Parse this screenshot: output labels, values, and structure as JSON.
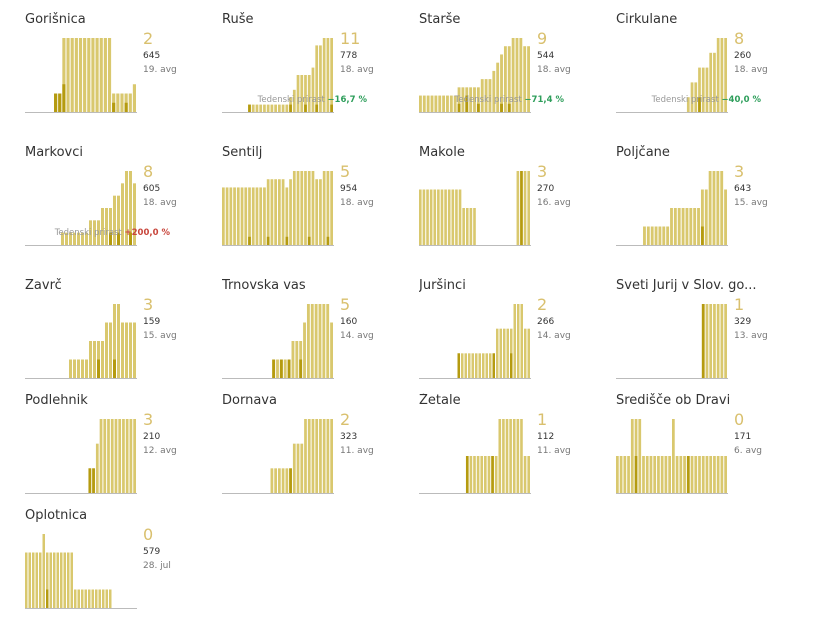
{
  "colors": {
    "light": "#d9c86e",
    "dark": "#b59b10",
    "baseline": "#bbbbbb",
    "number": "#d9c06e",
    "decrease": "#2e9e5b",
    "increase": "#c8453b"
  },
  "weekly_label": "Tedenski prirast",
  "chart_data": [
    {
      "type": "bar",
      "name": "Gorišnica",
      "big": "2",
      "population": "645",
      "date": "19. avg",
      "weekly": null,
      "values": [
        0,
        0,
        0,
        0,
        0,
        0,
        0,
        2,
        2,
        8,
        8,
        8,
        8,
        8,
        8,
        8,
        8,
        8,
        8,
        8,
        8,
        2,
        2,
        2,
        2,
        2,
        3
      ],
      "dark": [
        0,
        0,
        0,
        0,
        0,
        0,
        0,
        2,
        2,
        3,
        0,
        0,
        0,
        0,
        0,
        0,
        0,
        0,
        0,
        0,
        0,
        1,
        0,
        0,
        1,
        0,
        0
      ]
    },
    {
      "type": "bar",
      "name": "Ruše",
      "big": "11",
      "population": "778",
      "date": "18. avg",
      "weekly": {
        "text": "−16,7 %",
        "sign": "neg"
      },
      "values": [
        0,
        0,
        0,
        0,
        0,
        0,
        0,
        1,
        1,
        1,
        1,
        1,
        1,
        1,
        1,
        1,
        1,
        1,
        2,
        3,
        5,
        5,
        5,
        5,
        6,
        9,
        9,
        10,
        10,
        10
      ],
      "dark": [
        0,
        0,
        0,
        0,
        0,
        0,
        0,
        1,
        0,
        0,
        0,
        0,
        0,
        0,
        0,
        0,
        0,
        0,
        1,
        0,
        0,
        0,
        1,
        0,
        0,
        1,
        0,
        0,
        0,
        1
      ]
    },
    {
      "type": "bar",
      "name": "Starše",
      "big": "9",
      "population": "544",
      "date": "18. avg",
      "weekly": {
        "text": "−71,4 %",
        "sign": "neg"
      },
      "values": [
        2,
        2,
        2,
        2,
        2,
        2,
        2,
        2,
        2,
        2,
        3,
        3,
        3,
        3,
        3,
        3,
        4,
        4,
        4,
        5,
        6,
        7,
        8,
        8,
        9,
        9,
        9,
        8,
        8
      ],
      "dark": [
        0,
        0,
        0,
        0,
        0,
        0,
        0,
        0,
        0,
        0,
        1,
        0,
        2,
        0,
        0,
        1,
        0,
        0,
        0,
        0,
        0,
        1,
        0,
        1,
        0,
        0,
        0,
        0,
        0
      ]
    },
    {
      "type": "bar",
      "name": "Cirkulane",
      "big": "8",
      "population": "260",
      "date": "18. avg",
      "weekly": {
        "text": "−40,0 %",
        "sign": "neg"
      },
      "values": [
        0,
        0,
        0,
        0,
        0,
        0,
        0,
        0,
        0,
        0,
        0,
        0,
        0,
        0,
        0,
        0,
        0,
        0,
        0,
        1,
        2,
        2,
        3,
        3,
        3,
        4,
        4,
        5,
        5,
        5
      ],
      "dark": [
        0,
        0,
        0,
        0,
        0,
        0,
        0,
        0,
        0,
        0,
        0,
        0,
        0,
        0,
        0,
        0,
        0,
        0,
        0,
        0,
        0,
        0,
        1,
        0,
        0,
        0,
        0,
        0,
        0,
        0
      ]
    },
    {
      "type": "bar",
      "name": "Markovci",
      "big": "8",
      "population": "605",
      "date": "18. avg",
      "weekly": {
        "text": "+200,0 %",
        "sign": "pos"
      },
      "values": [
        0,
        0,
        0,
        0,
        0,
        0,
        0,
        0,
        0,
        1,
        1,
        1,
        1,
        1,
        1,
        1,
        2,
        2,
        2,
        3,
        3,
        3,
        4,
        4,
        5,
        6,
        6,
        5
      ],
      "dark": [
        0,
        0,
        0,
        0,
        0,
        0,
        0,
        0,
        0,
        0,
        0,
        0,
        0,
        0,
        0,
        0,
        0,
        0,
        0,
        0,
        0,
        1,
        0,
        1,
        0,
        0,
        1,
        0
      ]
    },
    {
      "type": "bar",
      "name": "Šentilj",
      "big": "5",
      "population": "954",
      "date": "18. avg",
      "weekly": null,
      "values": [
        7,
        7,
        7,
        7,
        7,
        7,
        7,
        7,
        7,
        7,
        7,
        7,
        8,
        8,
        8,
        8,
        8,
        7,
        8,
        9,
        9,
        9,
        9,
        9,
        9,
        8,
        8,
        9,
        9,
        9
      ],
      "dark": [
        0,
        0,
        0,
        0,
        0,
        0,
        0,
        1,
        0,
        0,
        0,
        0,
        1,
        0,
        0,
        0,
        0,
        1,
        0,
        0,
        0,
        0,
        0,
        1,
        0,
        0,
        0,
        0,
        1,
        0
      ]
    },
    {
      "type": "bar",
      "name": "Makole",
      "big": "3",
      "population": "270",
      "date": "16. avg",
      "weekly": null,
      "values": [
        3,
        3,
        3,
        3,
        3,
        3,
        3,
        3,
        3,
        3,
        3,
        3,
        2,
        2,
        2,
        2,
        0,
        0,
        0,
        0,
        0,
        0,
        0,
        0,
        0,
        0,
        0,
        4,
        4,
        4,
        4
      ],
      "dark": [
        0,
        0,
        0,
        0,
        0,
        0,
        0,
        0,
        0,
        0,
        0,
        0,
        0,
        0,
        0,
        0,
        0,
        0,
        0,
        0,
        0,
        0,
        0,
        0,
        0,
        0,
        0,
        0,
        4,
        0,
        0
      ]
    },
    {
      "type": "bar",
      "name": "Poljčane",
      "big": "3",
      "population": "643",
      "date": "15. avg",
      "weekly": null,
      "values": [
        0,
        0,
        0,
        0,
        0,
        0,
        0,
        1,
        1,
        1,
        1,
        1,
        1,
        1,
        2,
        2,
        2,
        2,
        2,
        2,
        2,
        2,
        3,
        3,
        4,
        4,
        4,
        4,
        3
      ],
      "dark": [
        0,
        0,
        0,
        0,
        0,
        0,
        0,
        0,
        0,
        0,
        0,
        0,
        0,
        0,
        0,
        0,
        0,
        0,
        0,
        0,
        0,
        0,
        1,
        0,
        0,
        0,
        0,
        0,
        0
      ]
    },
    {
      "type": "bar",
      "name": "Zavrč",
      "big": "3",
      "population": "159",
      "date": "15. avg",
      "weekly": null,
      "values": [
        0,
        0,
        0,
        0,
        0,
        0,
        0,
        0,
        0,
        0,
        0,
        1,
        1,
        1,
        1,
        1,
        2,
        2,
        2,
        2,
        3,
        3,
        4,
        4,
        3,
        3,
        3,
        3
      ],
      "dark": [
        0,
        0,
        0,
        0,
        0,
        0,
        0,
        0,
        0,
        0,
        0,
        0,
        0,
        0,
        0,
        0,
        0,
        0,
        1,
        0,
        0,
        0,
        1,
        0,
        0,
        0,
        0,
        0
      ]
    },
    {
      "type": "bar",
      "name": "Trnovska vas",
      "big": "5",
      "population": "160",
      "date": "14. avg",
      "weekly": null,
      "values": [
        0,
        0,
        0,
        0,
        0,
        0,
        0,
        0,
        0,
        0,
        0,
        0,
        0,
        1,
        1,
        1,
        1,
        1,
        2,
        2,
        2,
        3,
        4,
        4,
        4,
        4,
        4,
        4,
        3
      ],
      "dark": [
        0,
        0,
        0,
        0,
        0,
        0,
        0,
        0,
        0,
        0,
        0,
        0,
        0,
        1,
        0,
        1,
        0,
        1,
        0,
        0,
        1,
        0,
        0,
        0,
        0,
        0,
        0,
        0,
        0
      ]
    },
    {
      "type": "bar",
      "name": "Juršinci",
      "big": "2",
      "population": "266",
      "date": "14. avg",
      "weekly": null,
      "values": [
        0,
        0,
        0,
        0,
        0,
        0,
        0,
        0,
        0,
        0,
        0,
        1,
        1,
        1,
        1,
        1,
        1,
        1,
        1,
        1,
        1,
        1,
        2,
        2,
        2,
        2,
        2,
        3,
        3,
        3,
        2,
        2
      ],
      "dark": [
        0,
        0,
        0,
        0,
        0,
        0,
        0,
        0,
        0,
        0,
        0,
        1,
        0,
        0,
        0,
        0,
        0,
        0,
        0,
        0,
        0,
        1,
        0,
        0,
        0,
        0,
        1,
        0,
        0,
        0,
        0,
        0
      ]
    },
    {
      "type": "bar",
      "name": "Sveti Jurij v Slov. go...",
      "big": "1",
      "population": "329",
      "date": "13. avg",
      "weekly": null,
      "values": [
        0,
        0,
        0,
        0,
        0,
        0,
        0,
        0,
        0,
        0,
        0,
        0,
        0,
        0,
        0,
        0,
        0,
        0,
        0,
        0,
        0,
        0,
        0,
        1,
        1,
        1,
        1,
        1,
        1,
        1
      ],
      "dark": [
        0,
        0,
        0,
        0,
        0,
        0,
        0,
        0,
        0,
        0,
        0,
        0,
        0,
        0,
        0,
        0,
        0,
        0,
        0,
        0,
        0,
        0,
        0,
        1,
        0,
        0,
        0,
        0,
        0,
        0
      ]
    },
    {
      "type": "bar",
      "name": "Podlehnik",
      "big": "3",
      "population": "210",
      "date": "12. avg",
      "weekly": null,
      "values": [
        0,
        0,
        0,
        0,
        0,
        0,
        0,
        0,
        0,
        0,
        0,
        0,
        0,
        0,
        0,
        0,
        0,
        1,
        1,
        2,
        3,
        3,
        3,
        3,
        3,
        3,
        3,
        3,
        3,
        3
      ],
      "dark": [
        0,
        0,
        0,
        0,
        0,
        0,
        0,
        0,
        0,
        0,
        0,
        0,
        0,
        0,
        0,
        0,
        0,
        1,
        1,
        0,
        0,
        0,
        0,
        0,
        0,
        0,
        0,
        0,
        0,
        0
      ]
    },
    {
      "type": "bar",
      "name": "Dornava",
      "big": "2",
      "population": "323",
      "date": "11. avg",
      "weekly": null,
      "values": [
        0,
        0,
        0,
        0,
        0,
        0,
        0,
        0,
        0,
        0,
        0,
        0,
        0,
        1,
        1,
        1,
        1,
        1,
        1,
        2,
        2,
        2,
        3,
        3,
        3,
        3,
        3,
        3,
        3,
        3
      ],
      "dark": [
        0,
        0,
        0,
        0,
        0,
        0,
        0,
        0,
        0,
        0,
        0,
        0,
        0,
        0,
        0,
        0,
        0,
        0,
        1,
        0,
        0,
        0,
        0,
        0,
        0,
        0,
        0,
        0,
        0,
        0
      ]
    },
    {
      "type": "bar",
      "name": "Žetale",
      "big": "1",
      "population": "112",
      "date": "11. avg",
      "weekly": null,
      "values": [
        0,
        0,
        0,
        0,
        0,
        0,
        0,
        0,
        0,
        0,
        0,
        0,
        0,
        1,
        1,
        1,
        1,
        1,
        1,
        1,
        1,
        1,
        2,
        2,
        2,
        2,
        2,
        2,
        2,
        1,
        1
      ],
      "dark": [
        0,
        0,
        0,
        0,
        0,
        0,
        0,
        0,
        0,
        0,
        0,
        0,
        0,
        1,
        0,
        0,
        0,
        0,
        0,
        0,
        1,
        0,
        0,
        0,
        0,
        0,
        0,
        0,
        0,
        0,
        0
      ]
    },
    {
      "type": "bar",
      "name": "Središče ob Dravi",
      "big": "0",
      "population": "171",
      "date": "6. avg",
      "weekly": null,
      "values": [
        1,
        1,
        1,
        1,
        2,
        2,
        2,
        1,
        1,
        1,
        1,
        1,
        1,
        1,
        1,
        2,
        1,
        1,
        1,
        1,
        1,
        1,
        1,
        1,
        1,
        1,
        1,
        1,
        1,
        1
      ],
      "dark": [
        0,
        0,
        0,
        0,
        0,
        1,
        0,
        0,
        0,
        0,
        0,
        0,
        0,
        0,
        0,
        0,
        0,
        0,
        0,
        1,
        0,
        0,
        0,
        0,
        0,
        0,
        0,
        0,
        0,
        0
      ]
    },
    {
      "type": "bar",
      "name": "Oplotnica",
      "big": "0",
      "population": "579",
      "date": "28. jul",
      "weekly": null,
      "values": [
        3,
        3,
        3,
        3,
        3,
        4,
        3,
        3,
        3,
        3,
        3,
        3,
        3,
        3,
        1,
        1,
        1,
        1,
        1,
        1,
        1,
        1,
        1,
        1,
        1,
        0,
        0,
        0,
        0,
        0,
        0,
        0
      ],
      "dark": [
        0,
        0,
        0,
        0,
        0,
        0,
        1,
        0,
        0,
        0,
        0,
        0,
        0,
        0,
        0,
        0,
        0,
        0,
        0,
        0,
        0,
        0,
        0,
        0,
        0,
        0,
        0,
        0,
        0,
        0,
        0,
        0
      ]
    }
  ]
}
